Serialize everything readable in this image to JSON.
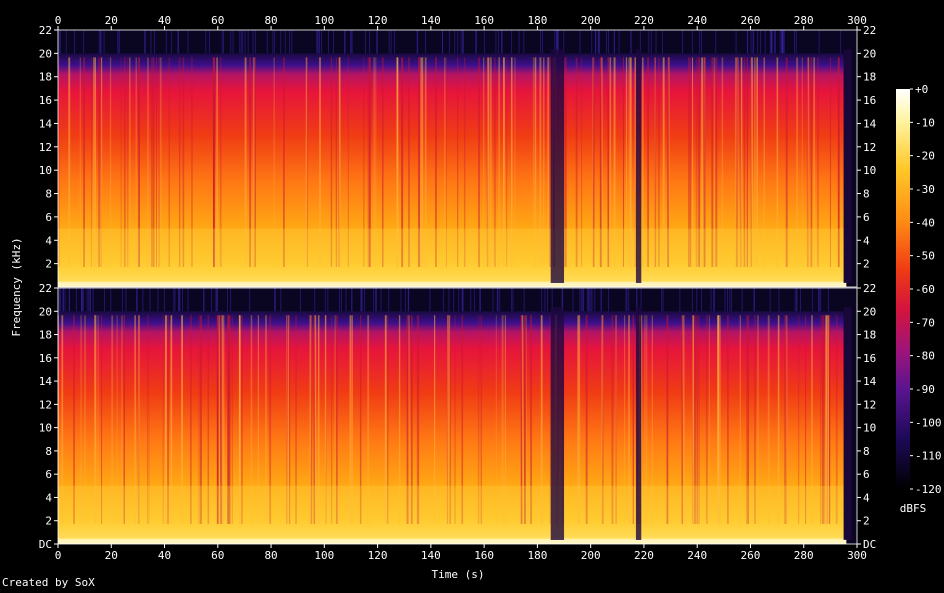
{
  "chart_data": {
    "type": "heatmap",
    "xlabel": "Time (s)",
    "ylabel": "Frequency (kHz)",
    "xlim": [
      0,
      300
    ],
    "x_ticks": [
      0,
      20,
      40,
      60,
      80,
      100,
      120,
      140,
      160,
      180,
      200,
      220,
      240,
      260,
      280,
      300
    ],
    "ylim_khz": [
      0,
      22
    ],
    "y_ticks": [
      {
        "value": 0,
        "label": "DC"
      },
      {
        "value": 2,
        "label": "2"
      },
      {
        "value": 4,
        "label": "4"
      },
      {
        "value": 6,
        "label": "6"
      },
      {
        "value": 8,
        "label": "8"
      },
      {
        "value": 10,
        "label": "10"
      },
      {
        "value": 12,
        "label": "12"
      },
      {
        "value": 14,
        "label": "14"
      },
      {
        "value": 16,
        "label": "16"
      },
      {
        "value": 18,
        "label": "18"
      },
      {
        "value": 20,
        "label": "20"
      },
      {
        "value": 22,
        "label": "22"
      }
    ],
    "channels": 2,
    "cutoff_khz": 20,
    "dropout_regions_s": [
      [
        185,
        190
      ],
      [
        217,
        219
      ],
      [
        295,
        298
      ]
    ],
    "colorbar": {
      "label": "dBFS",
      "range_db": [
        -120,
        0
      ],
      "ticks": [
        "+0",
        "-10",
        "-20",
        "-30",
        "-40",
        "-50",
        "-60",
        "-70",
        "-80",
        "-90",
        "-100",
        "-110",
        "-120"
      ]
    },
    "colormap_hex": [
      "#000000",
      "#1a0a5a",
      "#5a1490",
      "#9c1478",
      "#d4143c",
      "#f83c14",
      "#ff7814",
      "#ffb414",
      "#ffe050",
      "#ffffff"
    ]
  },
  "footer": {
    "credit": "Created by SoX"
  }
}
